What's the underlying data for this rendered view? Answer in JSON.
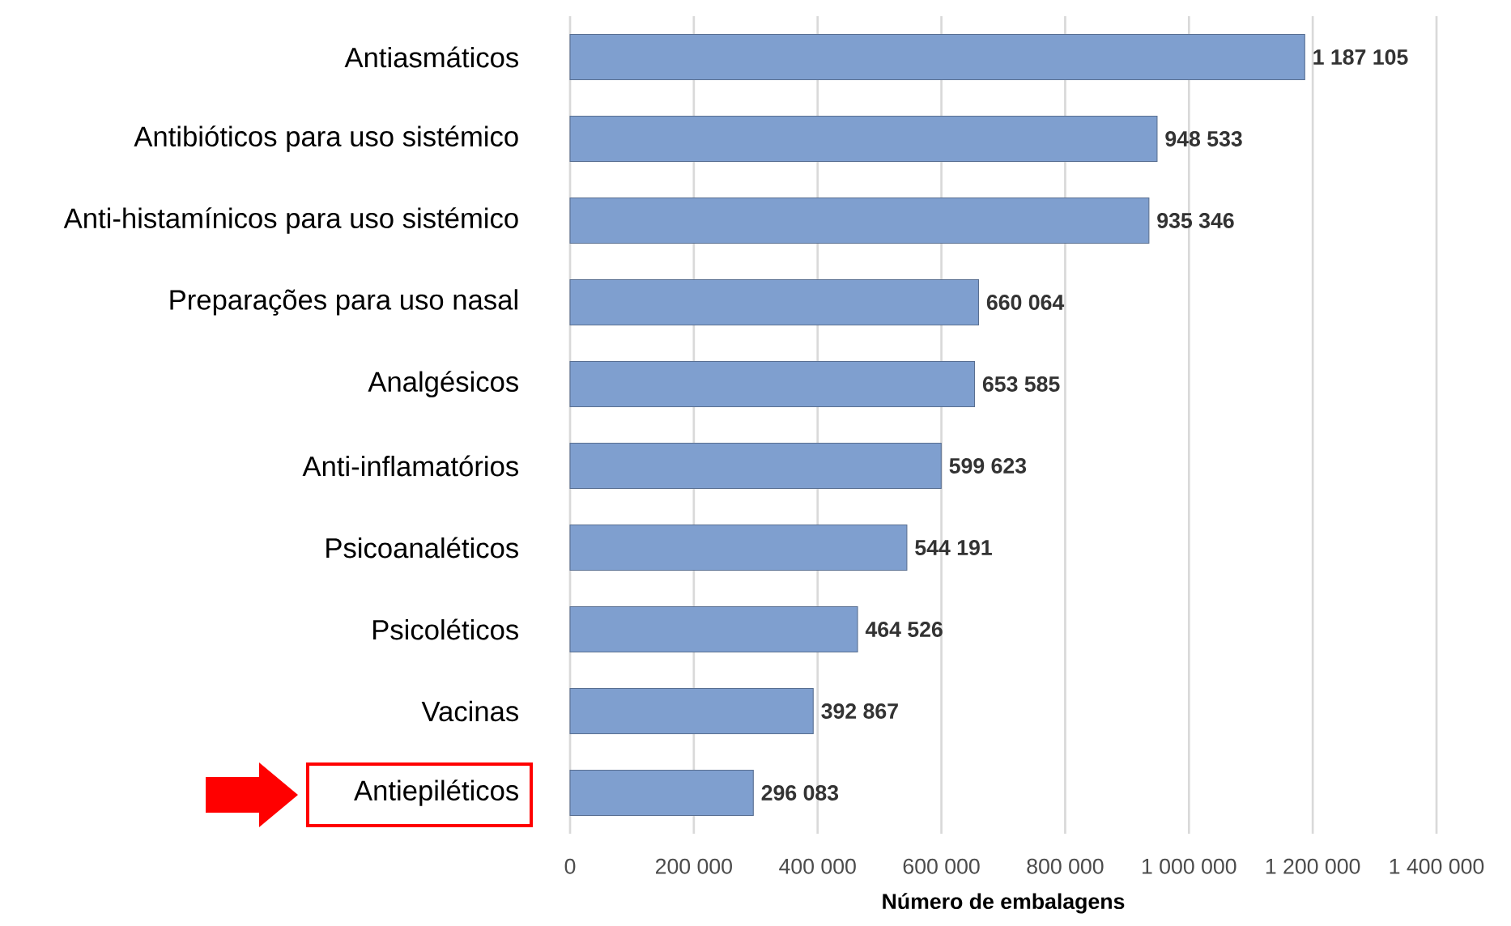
{
  "chart_data": {
    "type": "bar",
    "orientation": "horizontal",
    "xlabel": "Número de embalagens",
    "categories": [
      "Antiasmáticos",
      "Antibióticos para uso sistémico",
      "Anti-histamínicos para uso sistémico",
      "Preparações para uso nasal",
      "Analgésicos",
      "Anti-inflamatórios",
      "Psicoanaléticos",
      "Psicoléticos",
      "Vacinas",
      "Antiepiléticos"
    ],
    "values": [
      1187105,
      948533,
      935346,
      660064,
      653585,
      599623,
      544191,
      464526,
      392867,
      296083
    ],
    "value_labels": [
      "1 187 105",
      "948 533",
      "935 346",
      "660 064",
      "653 585",
      "599 623",
      "544 191",
      "464 526",
      "392 867",
      "296 083"
    ],
    "color": "#7f9fcf",
    "xlim": [
      0,
      1400000
    ],
    "xticks": [
      0,
      {
        "value": 200000,
        "label": "200 000"
      },
      {
        "value": 400000,
        "label": "400 000"
      },
      {
        "value": 600000,
        "label": "600 000"
      },
      {
        "value": 800000,
        "label": "800 000"
      },
      {
        "value": 1000000,
        "label": "1 000 000"
      },
      {
        "value": 1200000,
        "label": "1 200 000"
      },
      {
        "value": 1400000,
        "label": "1 400 000"
      }
    ],
    "grid": "x"
  }
}
